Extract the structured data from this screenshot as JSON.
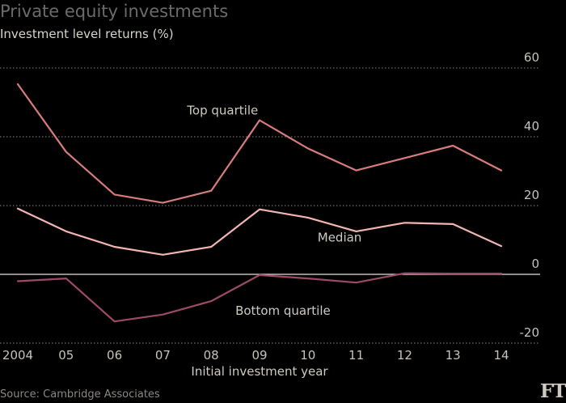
{
  "header": {
    "title": "Private equity investments",
    "subtitle": "Investment level returns (%)"
  },
  "footer": {
    "source": "Source: Cambridge Associates",
    "logo": "FT"
  },
  "colors": {
    "top": "#d77c7c",
    "median": "#f2b5b2",
    "bottom": "#9b4a6a",
    "grid": "#8a8480",
    "zero": "#e8e2da"
  },
  "chart_data": {
    "type": "line",
    "title": "Private equity investments",
    "subtitle": "Investment level returns (%)",
    "xlabel": "Initial investment year",
    "ylabel": "",
    "x": [
      2004,
      2005,
      2006,
      2007,
      2008,
      2009,
      2010,
      2011,
      2012,
      2013,
      2014
    ],
    "x_tick_labels": [
      "2004",
      "05",
      "06",
      "07",
      "08",
      "09",
      "10",
      "11",
      "12",
      "13",
      "14"
    ],
    "y_ticks": [
      60,
      40,
      20,
      0,
      -20
    ],
    "y_tick_labels": [
      "60",
      "40",
      "20",
      "0",
      "-20"
    ],
    "ylim": [
      -20,
      60
    ],
    "grid": true,
    "series": [
      {
        "name": "Top quartile",
        "values": [
          55.3,
          35.6,
          23.2,
          20.8,
          24.3,
          44.8,
          36.6,
          30.2,
          33.8,
          37.4,
          30.2
        ]
      },
      {
        "name": "Median",
        "values": [
          19.1,
          12.5,
          8.0,
          5.7,
          8.0,
          18.9,
          16.5,
          12.5,
          15.0,
          14.6,
          8.2
        ]
      },
      {
        "name": "Bottom quartile",
        "values": [
          -2.0,
          -1.2,
          -13.7,
          -11.7,
          -7.8,
          -0.2,
          -1.2,
          -2.4,
          0.3,
          0.2,
          0.2
        ]
      }
    ]
  }
}
